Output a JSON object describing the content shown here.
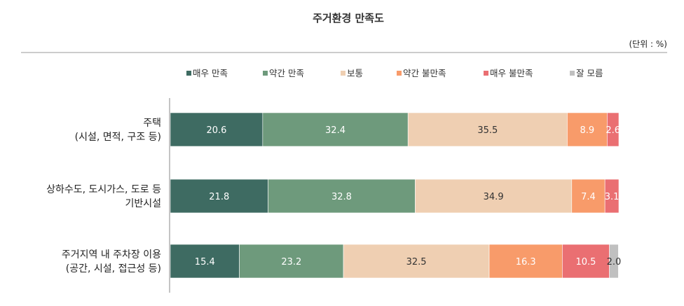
{
  "chart_data": {
    "type": "bar",
    "orientation": "horizontal",
    "stacked": true,
    "title": "주거환경 만족도",
    "unit_label": "(단위 : %)",
    "categories": [
      [
        "주택",
        "(시설, 면적, 구조 등)"
      ],
      [
        "상하수도, 도시가스, 도로 등",
        "기반시설"
      ],
      [
        "주거지역 내 주차장 이용",
        "(공간, 시설, 접근성 등)"
      ]
    ],
    "series": [
      {
        "name": "매우 만족",
        "color": "#3e6b62",
        "label_color": "#ffffff",
        "values": [
          20.6,
          21.8,
          15.4
        ]
      },
      {
        "name": "약간 만족",
        "color": "#6e9a7c",
        "label_color": "#ffffff",
        "values": [
          32.4,
          32.8,
          23.2
        ]
      },
      {
        "name": "보통",
        "color": "#efcfb2",
        "label_color": "#333333",
        "values": [
          35.5,
          34.9,
          32.5
        ]
      },
      {
        "name": "약간 불만족",
        "color": "#f89b6a",
        "label_color": "#ffffff",
        "values": [
          8.9,
          7.4,
          16.3
        ]
      },
      {
        "name": "매우 불만족",
        "color": "#ea6f72",
        "label_color": "#ffffff",
        "values": [
          2.6,
          3.1,
          10.5
        ]
      },
      {
        "name": "잘 모름",
        "color": "#c0c0c0",
        "label_color": "#333333",
        "values": [
          0,
          0,
          2.0
        ]
      }
    ],
    "xlim": [
      0,
      100
    ],
    "legend_position": "top",
    "grid": false
  }
}
